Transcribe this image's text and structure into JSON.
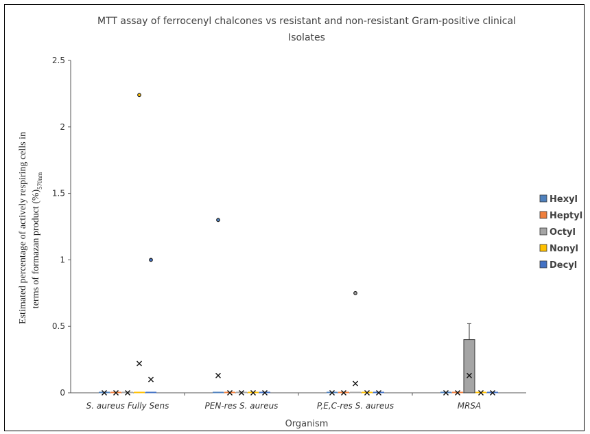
{
  "chart_data": {
    "type": "box",
    "title_lines": [
      "MTT assay of ferrocenyl chalcones vs resistant and non-resistant Gram-positive  clinical",
      "Isolates"
    ],
    "xlabel": "Organism",
    "ylabel_lines": [
      "Estimated percentage of actively respiring cells in",
      "terms of formazan product (%)"
    ],
    "ylabel_subscript": "570nm",
    "ylim": [
      0,
      2.5
    ],
    "yticks": [
      "0",
      "0.5",
      "1",
      "1.5",
      "2",
      "2.5"
    ],
    "categories": [
      "S. aureus Fully Sens",
      "PEN-res S. aureus",
      "P,E,C-res S. aureus",
      "MRSA"
    ],
    "series": [
      {
        "name": "Hexyl",
        "color": "#4f81bd",
        "q1": [
          0,
          0,
          0,
          0
        ],
        "q3": [
          0,
          0,
          0,
          0
        ],
        "mean": [
          0,
          0.13,
          0,
          0
        ],
        "whisker_max": [
          0,
          0,
          0,
          0
        ],
        "outliers": [
          [],
          [
            1.3
          ],
          [],
          []
        ]
      },
      {
        "name": "Heptyl",
        "color": "#f07f3c",
        "q1": [
          0,
          0,
          0,
          0
        ],
        "q3": [
          0,
          0,
          0,
          0
        ],
        "mean": [
          0,
          0,
          0,
          0
        ],
        "whisker_max": [
          0,
          0,
          0,
          0
        ],
        "outliers": [
          [],
          [],
          [],
          []
        ]
      },
      {
        "name": "Octyl",
        "color": "#a5a5a5",
        "q1": [
          0,
          0,
          0,
          0
        ],
        "q3": [
          0,
          0,
          0,
          0.4
        ],
        "mean": [
          0,
          0,
          0.07,
          0.13
        ],
        "whisker_max": [
          0,
          0,
          0,
          0.52
        ],
        "outliers": [
          [],
          [],
          [
            0.75
          ],
          []
        ]
      },
      {
        "name": "Nonyl",
        "color": "#ffc000",
        "q1": [
          0,
          0,
          0,
          0
        ],
        "q3": [
          0,
          0,
          0,
          0
        ],
        "mean": [
          0.22,
          0,
          0,
          0
        ],
        "whisker_max": [
          0,
          0,
          0,
          0
        ],
        "outliers": [
          [
            2.24
          ],
          [],
          [],
          []
        ]
      },
      {
        "name": "Decyl",
        "color": "#4472c4",
        "q1": [
          0,
          0,
          0,
          0
        ],
        "q3": [
          0,
          0,
          0,
          0
        ],
        "mean": [
          0.1,
          0,
          0,
          0
        ],
        "whisker_max": [
          0,
          0,
          0,
          0
        ],
        "outliers": [
          [
            1.0
          ],
          [],
          [],
          []
        ]
      }
    ],
    "legend_position": "right",
    "grid": false
  }
}
